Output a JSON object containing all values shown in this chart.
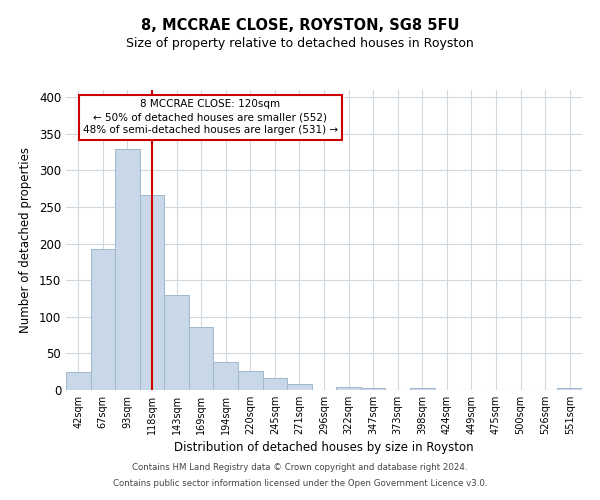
{
  "title": "8, MCCRAE CLOSE, ROYSTON, SG8 5FU",
  "subtitle": "Size of property relative to detached houses in Royston",
  "xlabel": "Distribution of detached houses by size in Royston",
  "ylabel": "Number of detached properties",
  "bar_labels": [
    "42sqm",
    "67sqm",
    "93sqm",
    "118sqm",
    "143sqm",
    "169sqm",
    "194sqm",
    "220sqm",
    "245sqm",
    "271sqm",
    "296sqm",
    "322sqm",
    "347sqm",
    "373sqm",
    "398sqm",
    "424sqm",
    "449sqm",
    "475sqm",
    "500sqm",
    "526sqm",
    "551sqm"
  ],
  "bar_values": [
    25,
    193,
    329,
    266,
    130,
    86,
    38,
    26,
    17,
    8,
    0,
    4,
    3,
    0,
    3,
    0,
    0,
    0,
    0,
    0,
    3
  ],
  "bar_color": "#c8d8e8",
  "bar_edge_color": "#a0b8cc",
  "vline_x_index": 3,
  "vline_color": "#cc0000",
  "ylim": [
    0,
    410
  ],
  "yticks": [
    0,
    50,
    100,
    150,
    200,
    250,
    300,
    350,
    400
  ],
  "annotation_box_title": "8 MCCRAE CLOSE: 120sqm",
  "annotation_line1": "← 50% of detached houses are smaller (552)",
  "annotation_line2": "48% of semi-detached houses are larger (531) →",
  "annotation_box_color": "#ffffff",
  "annotation_box_edgecolor": "#cc0000",
  "footer_line1": "Contains HM Land Registry data © Crown copyright and database right 2024.",
  "footer_line2": "Contains public sector information licensed under the Open Government Licence v3.0.",
  "background_color": "#ffffff",
  "grid_color": "#d0d8e0"
}
